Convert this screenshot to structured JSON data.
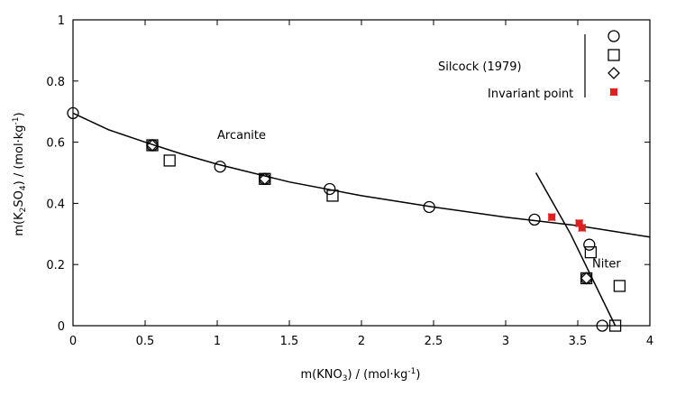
{
  "chart_data": {
    "type": "scatter",
    "xlabel_parts": {
      "pre": "m(KNO",
      "sub": "3",
      "post": ") / (mol·kg",
      "sup": "-1",
      "end": ")"
    },
    "ylabel_parts": {
      "pre": "m(K",
      "sub1": "2",
      "mid": "SO",
      "sub2": "4",
      "post": ") / (mol·kg",
      "sup": "-1",
      "end": ")"
    },
    "xlim": [
      0,
      4
    ],
    "ylim": [
      0,
      1
    ],
    "x_ticks": [
      0,
      0.5,
      1,
      1.5,
      2,
      2.5,
      3,
      3.5,
      4
    ],
    "x_tick_labels": [
      "0",
      "0.5",
      "1",
      "1.5",
      "2",
      "2.5",
      "3",
      "3.5",
      "4"
    ],
    "y_ticks": [
      0,
      0.2,
      0.4,
      0.6,
      0.8,
      1
    ],
    "y_tick_labels": [
      "0",
      "0.2",
      "0.4",
      "0.6",
      "0.8",
      "1"
    ],
    "grid": false,
    "legend": {
      "placement": "top-right",
      "source_label": "Silcock (1979)",
      "invariant_label": "Invariant point"
    },
    "annotations": [
      {
        "text": "Arcanite",
        "x": 1.0,
        "y": 0.61
      },
      {
        "text": "Niter",
        "x": 3.6,
        "y": 0.19
      }
    ],
    "series": [
      {
        "marker": "circle",
        "points": [
          [
            0,
            0.695
          ],
          [
            0.55,
            0.59
          ],
          [
            1.02,
            0.52
          ],
          [
            1.33,
            0.48
          ],
          [
            1.78,
            0.447
          ],
          [
            2.47,
            0.388
          ],
          [
            3.2,
            0.347
          ],
          [
            3.58,
            0.265
          ],
          [
            3.56,
            0.155
          ],
          [
            3.67,
            0.0
          ]
        ]
      },
      {
        "marker": "square",
        "points": [
          [
            0.55,
            0.59
          ],
          [
            0.67,
            0.54
          ],
          [
            1.33,
            0.48
          ],
          [
            1.8,
            0.425
          ],
          [
            3.59,
            0.24
          ],
          [
            3.56,
            0.155
          ],
          [
            3.79,
            0.13
          ],
          [
            3.76,
            0.0
          ]
        ]
      },
      {
        "marker": "diamond",
        "points": [
          [
            0.55,
            0.59
          ],
          [
            1.33,
            0.48
          ],
          [
            3.56,
            0.155
          ]
        ]
      },
      {
        "name": "Invariant point",
        "marker": "star",
        "color": "#e02020",
        "points": [
          [
            3.32,
            0.355
          ],
          [
            3.51,
            0.335
          ],
          [
            3.53,
            0.32
          ]
        ]
      }
    ],
    "curves": [
      {
        "label": "Arcanite",
        "points": [
          [
            0,
            0.695
          ],
          [
            0.25,
            0.64
          ],
          [
            0.5,
            0.6
          ],
          [
            0.75,
            0.562
          ],
          [
            1.0,
            0.528
          ],
          [
            1.5,
            0.47
          ],
          [
            2.0,
            0.425
          ],
          [
            2.5,
            0.388
          ],
          [
            3.0,
            0.355
          ],
          [
            3.5,
            0.327
          ],
          [
            4.0,
            0.29
          ]
        ]
      },
      {
        "label": "Niter",
        "points": [
          [
            3.21,
            0.5
          ],
          [
            3.45,
            0.3
          ],
          [
            3.76,
            0.0
          ]
        ]
      }
    ],
    "colors": {
      "invariant": "#e02020",
      "axes": "#000000"
    }
  }
}
